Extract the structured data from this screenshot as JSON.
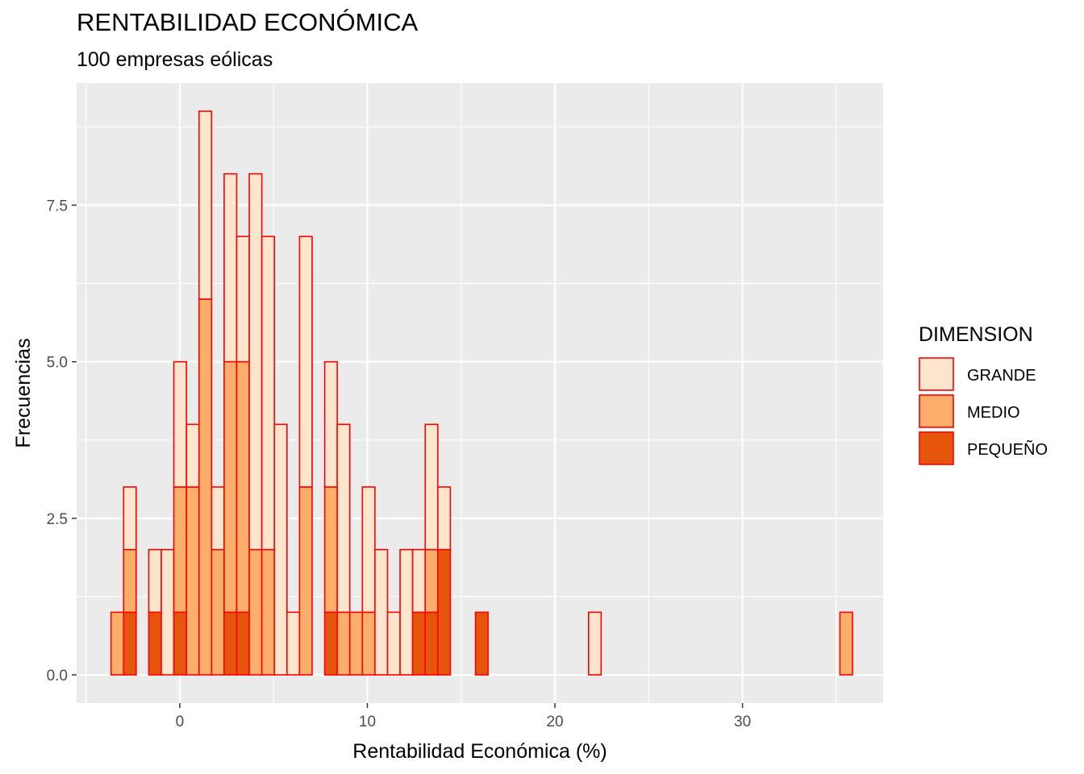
{
  "chart_data": {
    "type": "bar",
    "stacked": true,
    "title": "RENTABILIDAD ECONÓMICA",
    "subtitle": "100 empresas eólicas",
    "xlabel": "Rentabilidad Económica (%)",
    "ylabel": "Frecuencias",
    "xlim": [
      -5.5,
      37.5
    ],
    "ylim": [
      -0.45,
      9.45
    ],
    "x_ticks": [
      0,
      10,
      20,
      30
    ],
    "y_ticks": [
      0.0,
      2.5,
      5.0,
      7.5
    ],
    "x_tick_labels": [
      "0",
      "10",
      "20",
      "30"
    ],
    "y_tick_labels": [
      "0.0",
      "2.5",
      "5.0",
      "7.5"
    ],
    "bin_width": 0.67,
    "bin_centers": [
      -3.33,
      -2.66,
      -1.99,
      -1.32,
      -0.65,
      0.02,
      0.69,
      1.36,
      2.03,
      2.7,
      3.37,
      4.04,
      4.71,
      5.38,
      6.05,
      6.72,
      7.39,
      8.06,
      8.73,
      9.4,
      10.07,
      10.74,
      11.41,
      12.08,
      12.75,
      13.42,
      14.09,
      14.76,
      15.43,
      16.1,
      16.77,
      17.44,
      18.11,
      18.78,
      19.45,
      20.12,
      20.79,
      21.46,
      22.13,
      22.8,
      23.47,
      24.14,
      24.81,
      25.48,
      26.15,
      26.82,
      27.49,
      28.16,
      28.83,
      29.5,
      30.17,
      30.84,
      31.51,
      32.18,
      32.85,
      33.52,
      34.19,
      34.86,
      35.53
    ],
    "series": [
      {
        "name": "PEQUEÑO",
        "color": "#e6550d",
        "values": [
          0,
          1,
          0,
          1,
          0,
          1,
          0,
          0,
          0,
          1,
          1,
          0,
          0,
          0,
          0,
          0,
          0,
          1,
          0,
          0,
          0,
          0,
          0,
          0,
          1,
          1,
          2,
          0,
          0,
          1,
          0,
          0,
          0,
          0,
          0,
          0,
          0,
          0,
          0,
          0,
          0,
          0,
          0,
          0,
          0,
          0,
          0,
          0,
          0,
          0,
          0,
          0,
          0,
          0,
          0,
          0,
          0,
          0,
          0
        ]
      },
      {
        "name": "MEDIO",
        "color": "#fdae6b",
        "values": [
          1,
          1,
          0,
          0,
          0,
          2,
          3,
          6,
          2,
          4,
          4,
          2,
          2,
          0,
          0,
          3,
          0,
          2,
          1,
          1,
          1,
          0,
          0,
          0,
          0,
          1,
          0,
          0,
          0,
          0,
          0,
          0,
          0,
          0,
          0,
          0,
          0,
          0,
          0,
          0,
          0,
          0,
          0,
          0,
          0,
          0,
          0,
          0,
          0,
          0,
          0,
          0,
          0,
          0,
          0,
          0,
          0,
          0,
          1
        ]
      },
      {
        "name": "GRANDE",
        "color": "#fee6ce",
        "values": [
          0,
          1,
          0,
          1,
          2,
          2,
          1,
          3,
          1,
          3,
          2,
          6,
          5,
          4,
          1,
          4,
          0,
          2,
          3,
          0,
          2,
          2,
          1,
          2,
          1,
          2,
          1,
          0,
          0,
          0,
          0,
          0,
          0,
          0,
          0,
          0,
          0,
          0,
          1,
          0,
          0,
          0,
          0,
          0,
          0,
          0,
          0,
          0,
          0,
          0,
          0,
          0,
          0,
          0,
          0,
          0,
          0,
          0,
          0
        ]
      }
    ],
    "bar_outline": "#ff0000",
    "panel_background": "#ebebeb",
    "grid": true,
    "legend": {
      "title": "DIMENSION",
      "placement": "right",
      "entries": [
        "GRANDE",
        "MEDIO",
        "PEQUEÑO"
      ]
    }
  }
}
